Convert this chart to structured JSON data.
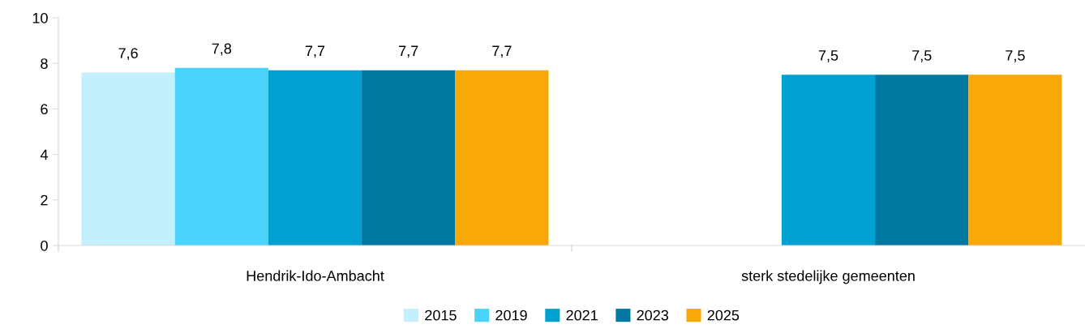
{
  "chart_data": {
    "type": "bar",
    "categories": [
      "Hendrik-Ido-Ambacht",
      "sterk stedelijke gemeenten"
    ],
    "series": [
      {
        "name": "2015",
        "color": "#c4effc",
        "values": [
          7.6,
          null
        ],
        "value_labels": [
          "7,6",
          null
        ]
      },
      {
        "name": "2019",
        "color": "#4ad4fc",
        "values": [
          7.8,
          null
        ],
        "value_labels": [
          "7,8",
          null
        ]
      },
      {
        "name": "2021",
        "color": "#00a0d0",
        "values": [
          7.7,
          7.5
        ],
        "value_labels": [
          "7,7",
          "7,5"
        ]
      },
      {
        "name": "2023",
        "color": "#00779e",
        "values": [
          7.7,
          7.5
        ],
        "value_labels": [
          "7,7",
          "7,5"
        ]
      },
      {
        "name": "2025",
        "color": "#f8a807",
        "values": [
          7.7,
          7.5
        ],
        "value_labels": [
          "7,7",
          "7,5"
        ]
      }
    ],
    "ylim": [
      0,
      10
    ],
    "yticks": [
      0,
      2,
      4,
      6,
      8,
      10
    ],
    "grid": false,
    "legend": "bottom"
  }
}
